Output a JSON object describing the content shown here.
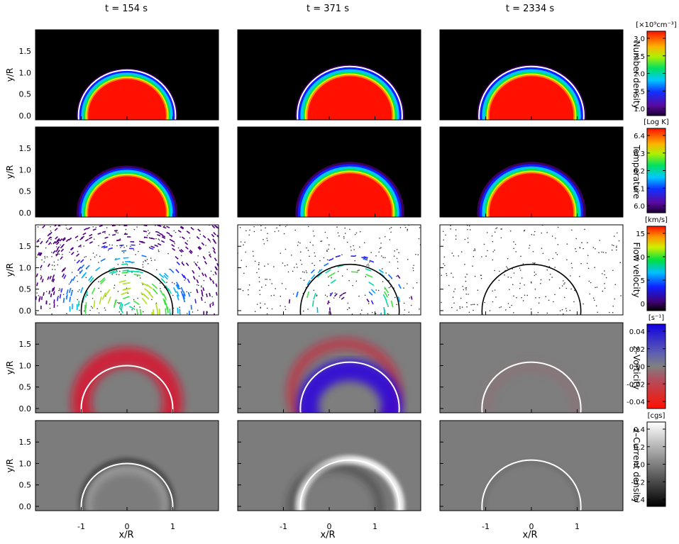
{
  "columns": [
    {
      "label": "t =  154 s",
      "loop_center": 0.0,
      "loop_radius": 1.0
    },
    {
      "label": "t =  371 s",
      "loop_center": 0.45,
      "loop_radius": 1.08
    },
    {
      "label": "t = 2334 s",
      "loop_center": 0.0,
      "loop_radius": 1.08
    }
  ],
  "rows": [
    {
      "key": "density",
      "title": "Number density",
      "unit": "[×10⁹cm⁻³]",
      "ticks": [
        "3.0",
        "2.5",
        "2.0",
        "1.5",
        "1.0"
      ],
      "colormap": "rainbow",
      "loop_line": "white"
    },
    {
      "key": "temperature",
      "title": "Temperature",
      "unit": "[Log K]",
      "ticks": [
        "6.4",
        "6.3",
        "6.2",
        "6.1",
        "6.0"
      ],
      "colormap": "rainbow",
      "loop_line": "none"
    },
    {
      "key": "flow",
      "title": "Flow velocity",
      "unit": "[km/s]",
      "ticks": [
        "15",
        "10",
        "5",
        "0"
      ],
      "colormap": "rainbow",
      "loop_line": "black"
    },
    {
      "key": "vorticity",
      "title": "z–Vorticity",
      "unit": "[s⁻¹]",
      "ticks": [
        "0.04",
        "0.02",
        "0.00",
        "-0.02",
        "-0.04"
      ],
      "colormap": "bluered",
      "loop_line": "white"
    },
    {
      "key": "current",
      "title": "z–Current density",
      "unit": "[cgs]",
      "ticks": [
        "0.4",
        "0.2",
        "0.0",
        "-0.2",
        "-0.4"
      ],
      "colormap": "gray",
      "loop_line": "white"
    }
  ],
  "axes": {
    "ylabel": "y/R",
    "xlabel": "x/R",
    "yticks": [
      "1.5",
      "1.0",
      "0.5",
      "0.0"
    ],
    "xticks": [
      "-1",
      "0",
      "1"
    ],
    "xlim": [
      -2,
      2
    ],
    "ylim": [
      -0.1,
      2.0
    ]
  },
  "colors": {
    "density_bg": "#000000",
    "vorticity_bg": "#7e7e7e",
    "current_bg": "#7c7c7c",
    "vorticity_positive": "#2a00e0",
    "vorticity_negative": "#e0102a"
  }
}
